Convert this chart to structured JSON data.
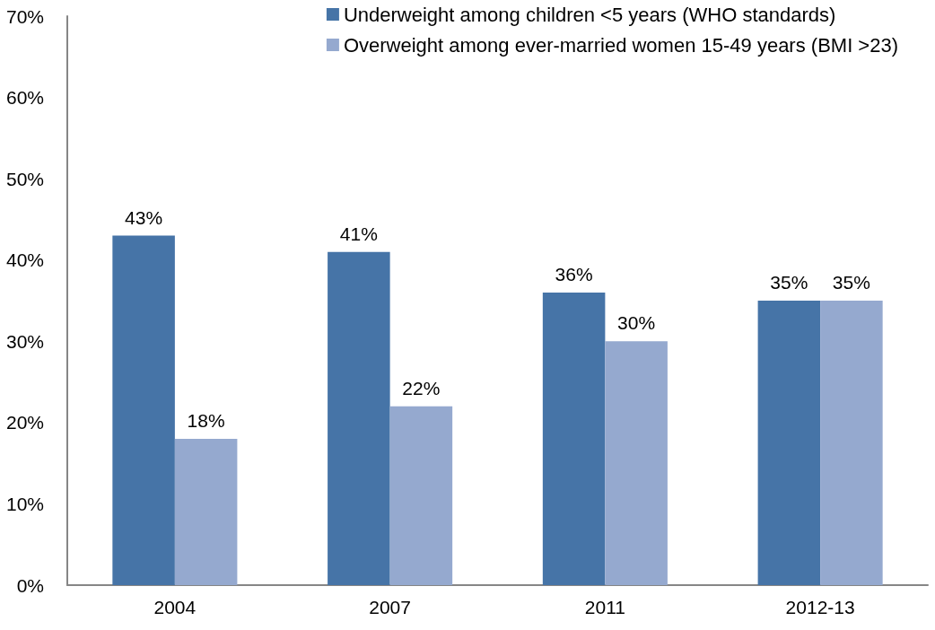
{
  "chart_data": {
    "type": "bar",
    "categories": [
      "2004",
      "2007",
      "2011",
      "2012-13"
    ],
    "series": [
      {
        "name": "Underweight among children <5 years (WHO standards)",
        "color": "#4674a7",
        "values": [
          43,
          41,
          36,
          35
        ],
        "value_labels": [
          "43%",
          "41%",
          "36%",
          "35%"
        ]
      },
      {
        "name": "Overweight among ever-married women 15-49 years (BMI >23)",
        "color": "#95a9cf",
        "values": [
          18,
          22,
          30,
          35
        ],
        "value_labels": [
          "18%",
          "22%",
          "30%",
          "35%"
        ]
      }
    ],
    "ylim": [
      0,
      70
    ],
    "yticks": [
      {
        "value": 0,
        "label": "0%"
      },
      {
        "value": 10,
        "label": "10%"
      },
      {
        "value": 20,
        "label": "20%"
      },
      {
        "value": 30,
        "label": "30%"
      },
      {
        "value": 40,
        "label": "40%"
      },
      {
        "value": 50,
        "label": "50%"
      },
      {
        "value": 60,
        "label": "60%"
      },
      {
        "value": 70,
        "label": "70%"
      }
    ],
    "legend": "top right"
  }
}
